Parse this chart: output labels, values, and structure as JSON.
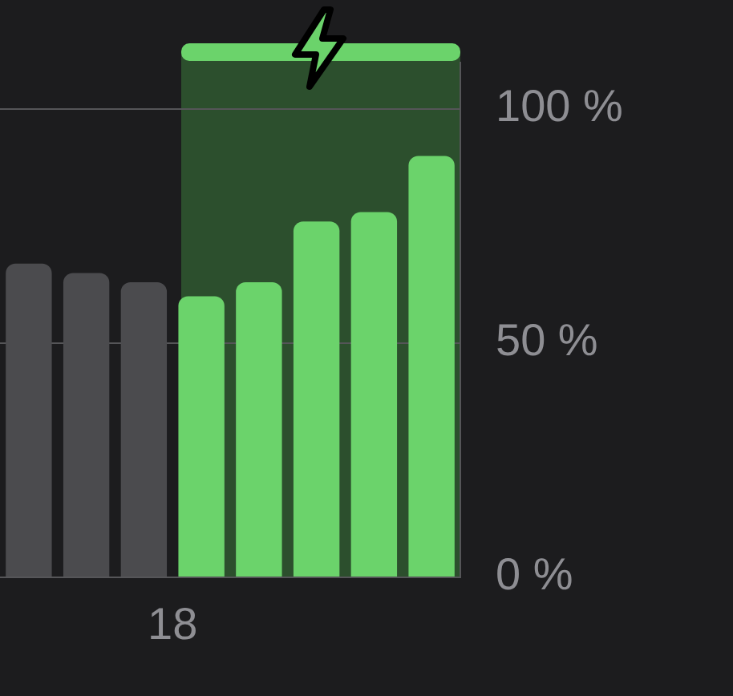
{
  "chart_data": {
    "type": "bar",
    "categories": [
      null,
      null,
      null,
      "18",
      null,
      null,
      null,
      null
    ],
    "values": [
      67,
      65,
      63,
      60,
      63,
      76,
      78,
      90
    ],
    "colors": [
      "#4b4b4e",
      "#4b4b4e",
      "#4b4b4e",
      "#6bd36b",
      "#6bd36b",
      "#6bd36b",
      "#6bd36b",
      "#6bd36b"
    ],
    "ylim": [
      0,
      110
    ],
    "yticks": [
      {
        "value": 0,
        "label": "0 %"
      },
      {
        "value": 50,
        "label": "50 %"
      },
      {
        "value": 100,
        "label": "100 %"
      }
    ],
    "grid": "y",
    "legend": false
  }
}
